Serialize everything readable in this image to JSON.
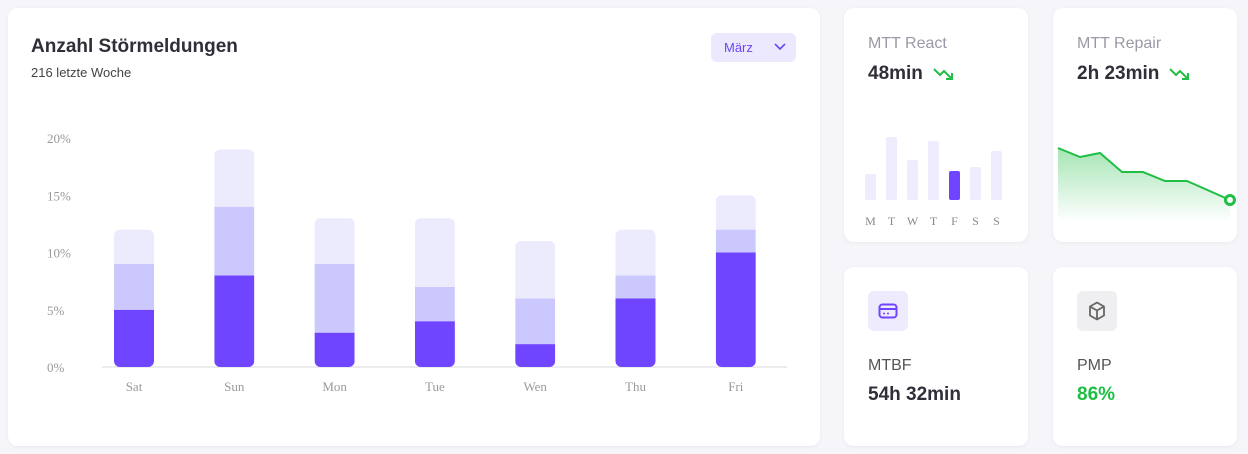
{
  "main": {
    "title": "Anzahl Störmeldungen",
    "subtitle": "216 letzte Woche",
    "dropdown": "März"
  },
  "chart_data": {
    "type": "bar",
    "stacked": true,
    "categories": [
      "Sat",
      "Sun",
      "Mon",
      "Tue",
      "Wen",
      "Thu",
      "Fri"
    ],
    "series": [
      {
        "values": [
          5,
          8,
          3,
          4,
          2,
          6,
          10
        ],
        "color": "#7045ff"
      },
      {
        "values": [
          4,
          6,
          6,
          3,
          4,
          2,
          2
        ],
        "color": "#cbc8fd"
      },
      {
        "values": [
          3,
          5,
          4,
          6,
          5,
          4,
          3
        ],
        "color": "#ecebfd"
      }
    ],
    "yticks": [
      "0%",
      "5%",
      "10%",
      "15%",
      "20%"
    ],
    "ylim": [
      0,
      20
    ],
    "unit": "%"
  },
  "react": {
    "label": "MTT React",
    "value": "48min",
    "trend": "down",
    "trend_color": "#1fbe44",
    "icon": "trend-down-icon",
    "mini_chart": {
      "type": "bar",
      "categories": [
        "M",
        "T",
        "W",
        "T",
        "F",
        "S",
        "S"
      ],
      "values": [
        26,
        63,
        40,
        59,
        29,
        33,
        49
      ],
      "highlight_index": 4,
      "highlight_color": "#7045ff",
      "color": "#eeecfd"
    }
  },
  "repair": {
    "label": "MTT Repair",
    "value": "2h 23min",
    "trend": "down",
    "icon": "trend-down-icon",
    "mini_chart": {
      "type": "area",
      "values": [
        52,
        43,
        47,
        28,
        28,
        19,
        19,
        0
      ],
      "color": "#1fbe44"
    }
  },
  "mtbf": {
    "label": "MTBF",
    "value": "54h 32min",
    "icon": "credit-card-icon",
    "icon_color": "#7045ff"
  },
  "pmp": {
    "label": "PMP",
    "value": "86%",
    "value_color": "#1fbe44",
    "icon": "box-icon"
  }
}
